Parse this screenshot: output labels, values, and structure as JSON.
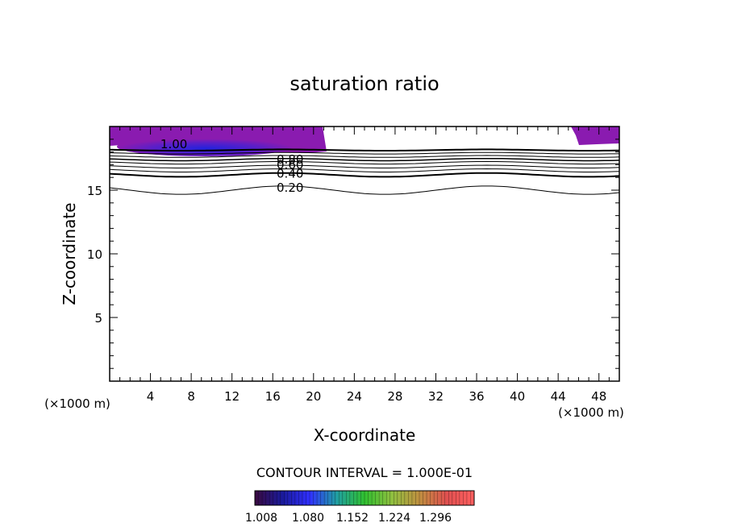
{
  "chart_data": {
    "type": "contour",
    "title": "saturation ratio",
    "xlabel": "X-coordinate",
    "ylabel": "Z-coordinate",
    "x_unit_left": "(×1000 m)",
    "x_unit_right": "(×1000 m)",
    "xlim": [
      0,
      50
    ],
    "ylim": [
      0,
      20
    ],
    "xticks": [
      4,
      8,
      12,
      16,
      20,
      24,
      28,
      32,
      36,
      40,
      44,
      48
    ],
    "yticks": [
      5,
      10,
      15
    ],
    "contour_interval_text": "CONTOUR INTERVAL = 1.000E-01",
    "contour_labels": [
      {
        "text": "1.00",
        "x": 6.3,
        "y": 18.6
      },
      {
        "text": "0.80",
        "x": 17.7,
        "y": 17.4
      },
      {
        "text": "0.60",
        "x": 17.7,
        "y": 17.0
      },
      {
        "text": "0.40",
        "x": 17.7,
        "y": 16.3
      },
      {
        "text": "0.20",
        "x": 17.7,
        "y": 15.2
      }
    ],
    "filled_regions": [
      {
        "name": "supersaturated-left",
        "x_range": [
          0,
          21
        ],
        "z_range": [
          18.1,
          20
        ]
      },
      {
        "name": "supersaturated-right",
        "x_range": [
          45.5,
          50
        ],
        "z_range": [
          18.5,
          20
        ]
      }
    ],
    "colorbar": {
      "ticks": [
        "1.008",
        "1.080",
        "1.152",
        "1.224",
        "1.296"
      ],
      "colors": [
        "#3a0a40",
        "#1a1a9a",
        "#3030ff",
        "#20a0a0",
        "#30c030",
        "#90c040",
        "#c09040",
        "#e05050",
        "#ff6060"
      ]
    },
    "fill_color": "#8a1bb0",
    "fill_dark": "#2a1fcc"
  }
}
